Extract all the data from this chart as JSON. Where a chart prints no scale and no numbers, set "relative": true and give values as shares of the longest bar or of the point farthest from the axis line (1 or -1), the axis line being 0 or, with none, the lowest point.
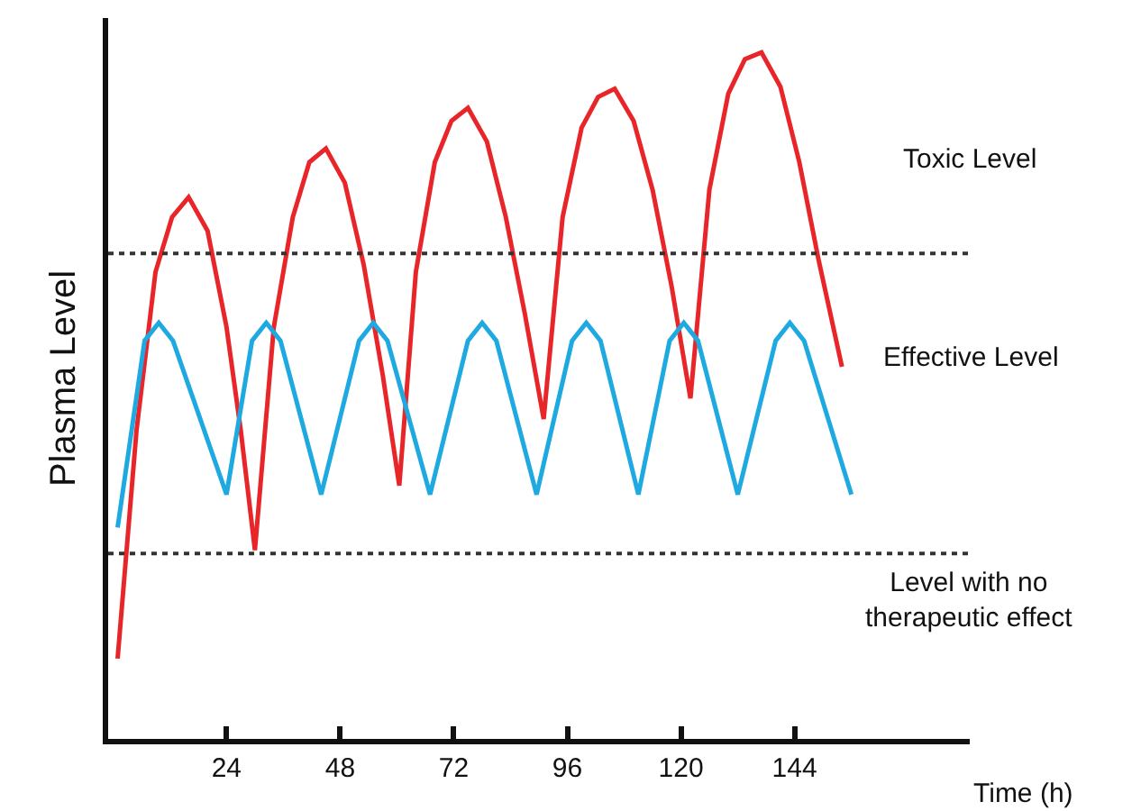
{
  "chart_data": {
    "type": "line",
    "relative": true,
    "xlabel": "Time (h)",
    "ylabel": "Plasma Level",
    "xlim": [
      -1,
      181
    ],
    "xticks": [
      24,
      48,
      72,
      96,
      120,
      144
    ],
    "marker": "none",
    "line_style": "solid",
    "series": [
      {
        "color": "#e8262a",
        "x": [
          1,
          5,
          9,
          12.5,
          16,
          20,
          24,
          27,
          30,
          34,
          38,
          41.5,
          45,
          49,
          53,
          57,
          60.5,
          64,
          68,
          71.5,
          75,
          79,
          83,
          87,
          91,
          95,
          99,
          102.5,
          106,
          110,
          114,
          118,
          122,
          126,
          130,
          133.5,
          137,
          141,
          145,
          149,
          154
        ],
        "values": [
          0.117,
          0.45,
          0.68,
          0.76,
          0.789,
          0.74,
          0.6,
          0.45,
          0.275,
          0.6,
          0.76,
          0.84,
          0.86,
          0.81,
          0.69,
          0.53,
          0.369,
          0.68,
          0.84,
          0.9,
          0.919,
          0.87,
          0.76,
          0.62,
          0.466,
          0.76,
          0.89,
          0.935,
          0.947,
          0.9,
          0.8,
          0.66,
          0.496,
          0.8,
          0.94,
          0.99,
          1,
          0.95,
          0.84,
          0.7,
          0.542
        ]
      },
      {
        "color": "#1ea9e1",
        "x": [
          1,
          6.7,
          9.7,
          12.7,
          24,
          29.4,
          32.4,
          35.4,
          44,
          52,
          55,
          58,
          67,
          75,
          78,
          81,
          89.5,
          97,
          100,
          103,
          111,
          117.6,
          120.6,
          123.6,
          132,
          140,
          143,
          146,
          156
        ],
        "values": [
          0.308,
          0.58,
          0.606,
          0.58,
          0.356,
          0.58,
          0.606,
          0.58,
          0.356,
          0.58,
          0.606,
          0.58,
          0.356,
          0.58,
          0.606,
          0.58,
          0.356,
          0.58,
          0.606,
          0.58,
          0.356,
          0.58,
          0.606,
          0.58,
          0.356,
          0.58,
          0.606,
          0.58,
          0.356
        ]
      }
    ],
    "ref_lines": [
      {
        "axis": "y",
        "value": 0.707,
        "color": "#333333",
        "line_style": "dotted"
      },
      {
        "axis": "y",
        "value": 0.27,
        "color": "#333333",
        "line_style": "dotted"
      }
    ],
    "annotations": [
      "Toxic Level",
      "Effective Level",
      "Level with no therapeutic effect"
    ]
  }
}
